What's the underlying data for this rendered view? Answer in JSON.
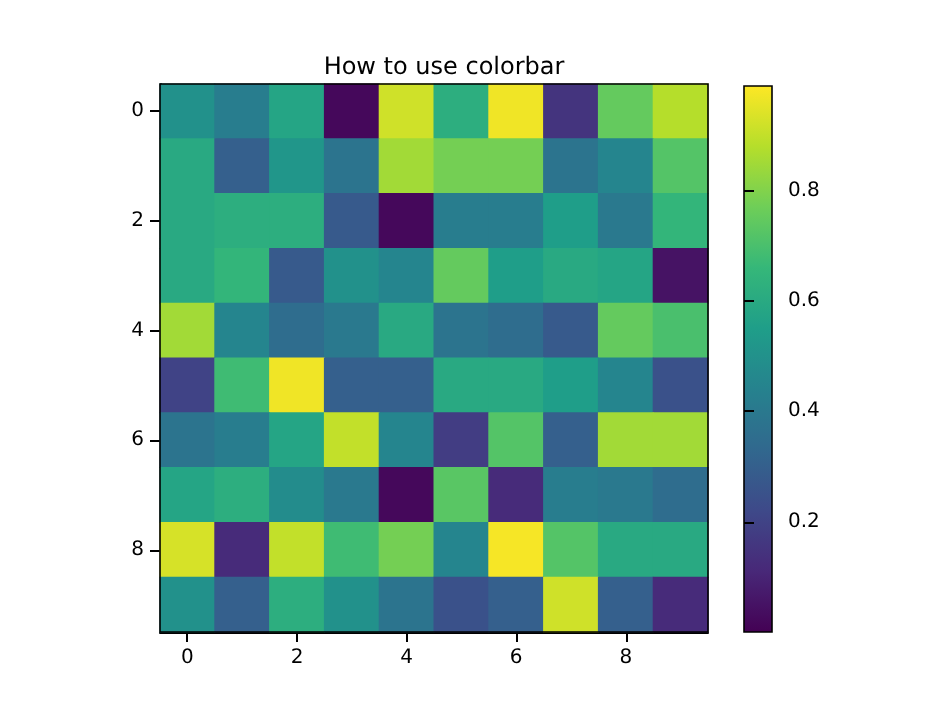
{
  "chart_data": {
    "type": "heatmap",
    "title": "How to use colorbar",
    "categories": [
      "0",
      null,
      "2",
      null,
      "4",
      null,
      "6",
      null,
      "8",
      null
    ],
    "y_categories": [
      "0",
      null,
      "2",
      null,
      "4",
      null,
      "6",
      null,
      "8",
      null
    ],
    "cells": [
      [
        0.5,
        0.42,
        0.58,
        0.02,
        0.92,
        0.62,
        0.97,
        0.15,
        0.75,
        0.88
      ],
      [
        0.6,
        0.3,
        0.52,
        0.38,
        0.85,
        0.78,
        0.78,
        0.38,
        0.45,
        0.72
      ],
      [
        0.6,
        0.62,
        0.62,
        0.28,
        0.02,
        0.42,
        0.42,
        0.55,
        0.4,
        0.65
      ],
      [
        0.6,
        0.65,
        0.28,
        0.5,
        0.45,
        0.75,
        0.55,
        0.6,
        0.58,
        0.05
      ],
      [
        0.85,
        0.45,
        0.35,
        0.4,
        0.6,
        0.38,
        0.35,
        0.28,
        0.75,
        0.7
      ],
      [
        0.2,
        0.68,
        0.97,
        0.3,
        0.3,
        0.6,
        0.6,
        0.55,
        0.45,
        0.25
      ],
      [
        0.38,
        0.42,
        0.58,
        0.9,
        0.45,
        0.18,
        0.72,
        0.3,
        0.85,
        0.85
      ],
      [
        0.58,
        0.62,
        0.48,
        0.4,
        0.02,
        0.73,
        0.12,
        0.42,
        0.4,
        0.35
      ],
      [
        0.93,
        0.12,
        0.9,
        0.68,
        0.78,
        0.45,
        0.98,
        0.72,
        0.6,
        0.6
      ],
      [
        0.5,
        0.3,
        0.62,
        0.5,
        0.38,
        0.25,
        0.3,
        0.92,
        0.3,
        0.12
      ]
    ],
    "clim": [
      0,
      0.99
    ],
    "cticks": [
      0.2,
      0.4,
      0.6,
      0.8
    ]
  }
}
